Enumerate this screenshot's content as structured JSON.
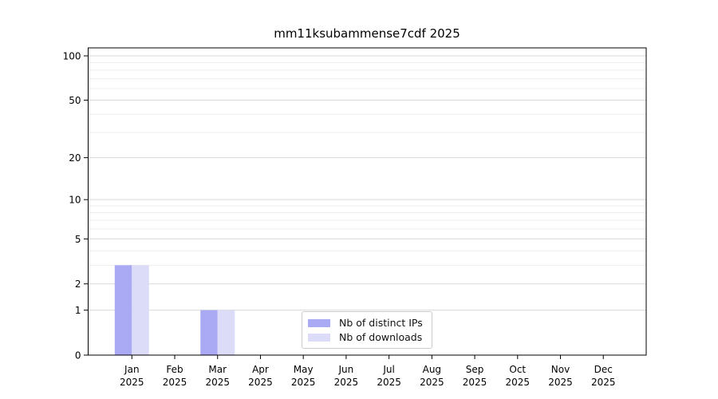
{
  "chart_data": {
    "type": "bar",
    "title": "mm11ksubammense7cdf 2025",
    "year": "2025",
    "months": [
      "Jan",
      "Feb",
      "Mar",
      "Apr",
      "May",
      "Jun",
      "Jul",
      "Aug",
      "Sep",
      "Oct",
      "Nov",
      "Dec"
    ],
    "series": [
      {
        "name": "Nb of distinct IPs",
        "color": "#a9a9f4",
        "values": [
          3,
          0,
          1,
          0,
          0,
          0,
          0,
          0,
          0,
          0,
          0,
          0
        ]
      },
      {
        "name": "Nb of downloads",
        "color": "#dcdcf8",
        "values": [
          3,
          0,
          1,
          0,
          0,
          0,
          0,
          0,
          0,
          0,
          0,
          0
        ]
      }
    ],
    "yscale": "log1p",
    "ylim": [
      0,
      113
    ],
    "y_major_ticks": [
      0,
      1,
      2,
      5,
      10,
      20,
      50,
      100
    ],
    "y_minor_gridlines": [
      3,
      4,
      6,
      7,
      8,
      9,
      30,
      40,
      60,
      70,
      80,
      90
    ],
    "grid": "horizontal",
    "legend_position": "inside-bottom-center",
    "colors": {
      "major_gridline": "#d9d9d9",
      "minor_gridline": "#eeeeee",
      "spine": "#000000"
    }
  }
}
